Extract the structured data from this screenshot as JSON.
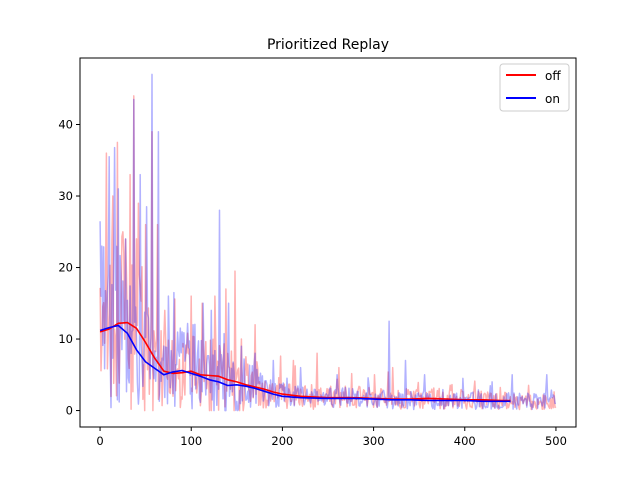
{
  "chart_data": {
    "type": "line",
    "title": "Prioritized Replay",
    "xlabel": "",
    "ylabel": "",
    "xlim": [
      -22,
      522
    ],
    "ylim": [
      -2.3,
      49.3
    ],
    "x_ticks": [
      0,
      100,
      200,
      300,
      400,
      500
    ],
    "y_ticks": [
      0,
      10,
      20,
      30,
      40
    ],
    "legend_position": "top-right",
    "grid": false,
    "series": [
      {
        "name": "off",
        "color": "#ff0000",
        "raw_color": "#ff0000",
        "x_max": 500,
        "x": [
          0,
          10,
          20,
          30,
          40,
          50,
          60,
          70,
          80,
          90,
          100,
          110,
          120,
          130,
          140,
          150,
          160,
          170,
          180,
          190,
          200,
          220,
          250,
          280,
          300,
          320,
          340,
          360,
          380,
          400,
          420,
          440,
          450
        ],
        "smoothed": [
          11,
          11.4,
          12.2,
          12.3,
          11.5,
          9.5,
          7.3,
          5.5,
          5.2,
          5.3,
          5.5,
          5.0,
          4.9,
          4.8,
          4.3,
          4.0,
          3.6,
          3.3,
          3.0,
          2.6,
          2.3,
          2.0,
          1.8,
          1.8,
          1.7,
          1.6,
          1.6,
          1.7,
          1.6,
          1.5,
          1.5,
          1.4,
          1.4
        ],
        "raw_peaks": [
          [
            7,
            36
          ],
          [
            14,
            30
          ],
          [
            19,
            37.5
          ],
          [
            26,
            22
          ],
          [
            33,
            33
          ],
          [
            37,
            44
          ],
          [
            42,
            29
          ],
          [
            50,
            26
          ],
          [
            57,
            39
          ],
          [
            63,
            26
          ],
          [
            71,
            14
          ],
          [
            100,
            16
          ],
          [
            112,
            15
          ],
          [
            126,
            16
          ],
          [
            138,
            17
          ],
          [
            148,
            19.5
          ],
          [
            155,
            10
          ],
          [
            170,
            12
          ],
          [
            212,
            7
          ],
          [
            238,
            8
          ],
          [
            262,
            6
          ],
          [
            301,
            5
          ],
          [
            321,
            6
          ]
        ]
      },
      {
        "name": "on",
        "color": "#0000ff",
        "raw_color": "#0000ff",
        "x_max": 500,
        "x": [
          0,
          10,
          20,
          30,
          40,
          50,
          60,
          70,
          80,
          90,
          100,
          110,
          120,
          130,
          140,
          150,
          160,
          170,
          180,
          190,
          200,
          220,
          250,
          280,
          300,
          320,
          340,
          360,
          380,
          400,
          420,
          440,
          450
        ],
        "smoothed": [
          11.2,
          11.6,
          11.9,
          10.8,
          8.5,
          6.8,
          5.9,
          5.0,
          5.4,
          5.6,
          5.2,
          4.8,
          4.3,
          4.0,
          3.5,
          3.6,
          3.4,
          3.1,
          2.7,
          2.3,
          2.0,
          1.8,
          1.7,
          1.7,
          1.6,
          1.5,
          1.5,
          1.4,
          1.4,
          1.4,
          1.3,
          1.3,
          1.3
        ],
        "raw_peaks": [
          [
            2,
            23
          ],
          [
            10,
            35.5
          ],
          [
            20,
            31
          ],
          [
            28,
            24
          ],
          [
            37,
            43.5
          ],
          [
            44,
            33
          ],
          [
            51,
            28.5
          ],
          [
            57,
            47
          ],
          [
            64,
            39
          ],
          [
            75,
            16
          ],
          [
            90,
            11
          ],
          [
            102,
            12
          ],
          [
            113,
            15
          ],
          [
            122,
            14
          ],
          [
            131,
            28
          ],
          [
            141,
            15
          ],
          [
            155,
            9
          ],
          [
            170,
            8
          ],
          [
            190,
            7
          ],
          [
            220,
            6
          ],
          [
            260,
            5
          ],
          [
            317,
            12.5
          ],
          [
            335,
            7
          ],
          [
            356,
            5
          ],
          [
            398,
            4.5
          ],
          [
            430,
            4
          ],
          [
            452,
            5
          ],
          [
            490,
            5
          ]
        ]
      }
    ]
  }
}
